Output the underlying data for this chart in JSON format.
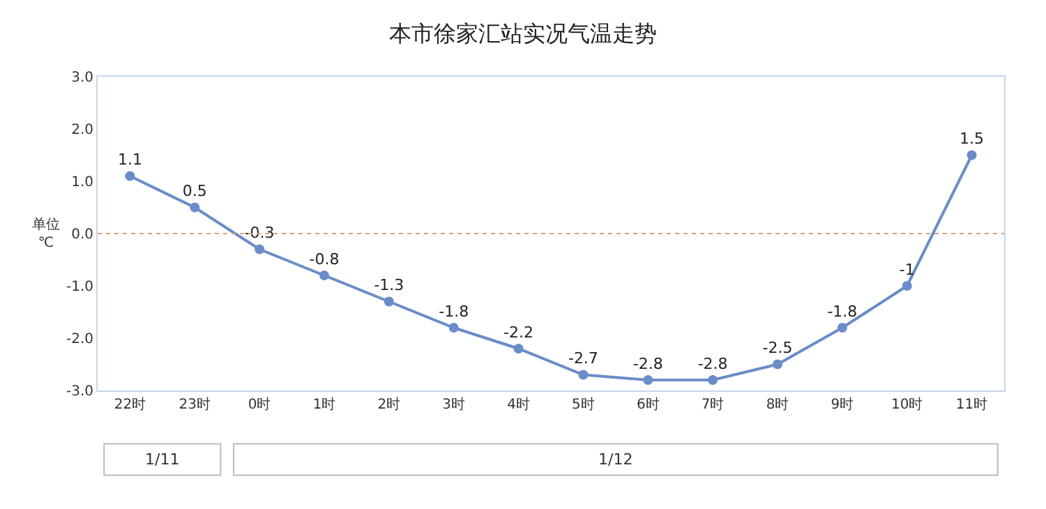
{
  "chart_data": {
    "type": "line",
    "title": "本市徐家汇站实况气温走势",
    "ylabel": "单位 ℃",
    "categories": [
      "22时",
      "23时",
      "0时",
      "1时",
      "2时",
      "3时",
      "4时",
      "5时",
      "6时",
      "7时",
      "8时",
      "9时",
      "10时",
      "11时"
    ],
    "series": [
      {
        "color": "#6a8cc8",
        "values": [
          1.1,
          0.5,
          -0.3,
          -0.8,
          -1.3,
          -1.8,
          -2.2,
          -2.7,
          -2.8,
          -2.8,
          -2.5,
          -1.8,
          -1,
          1.5
        ]
      }
    ],
    "ylim": [
      -3,
      3
    ],
    "yticks": [
      {
        "value": -3,
        "label": "-3.0"
      },
      {
        "value": -2,
        "label": "-2.0"
      },
      {
        "value": -1,
        "label": "-1.0"
      },
      {
        "value": 0,
        "label": "0.0"
      },
      {
        "value": 1,
        "label": "1.0"
      },
      {
        "value": 2,
        "label": "2.0"
      },
      {
        "value": 3,
        "label": "3.0"
      }
    ],
    "ref_lines": [
      {
        "axis": "y",
        "value": 0,
        "color": "#d9a27a",
        "line_style": "dotted"
      }
    ],
    "annotations": [
      "1/11",
      "1/12"
    ],
    "data_labels": true,
    "marker": "circle",
    "line_style": "solid"
  }
}
